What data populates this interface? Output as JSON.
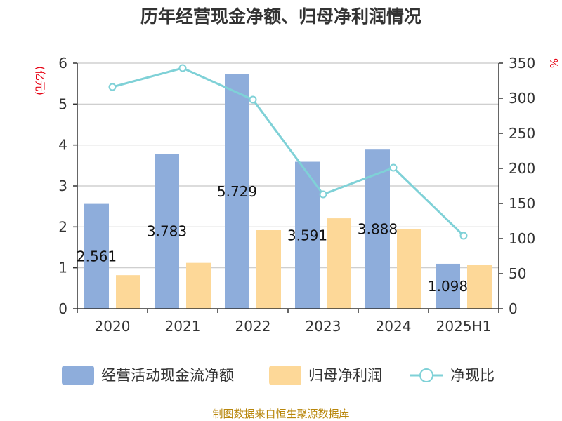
{
  "chart_data": {
    "type": "bar",
    "title": "历年经营现金净额、归母净利润情况",
    "y_left_unit": "(亿元)",
    "y_right_unit": "%",
    "categories": [
      "2020",
      "2021",
      "2022",
      "2023",
      "2024",
      "2025H1"
    ],
    "y_left_ticks": [
      "0",
      "1",
      "2",
      "3",
      "4",
      "5",
      "6"
    ],
    "y_right_ticks": [
      "0",
      "50",
      "100",
      "150",
      "200",
      "250",
      "300",
      "350"
    ],
    "ylim_left": [
      0,
      6
    ],
    "ylim_right": [
      0,
      350
    ],
    "grid": true,
    "legend_position": "bottom",
    "series": [
      {
        "name": "经营活动现金流净额",
        "kind": "bar",
        "axis": "left",
        "color": "#8eaddb",
        "values": [
          2.561,
          3.783,
          5.729,
          3.591,
          3.888,
          1.098
        ],
        "labels": [
          "2.561",
          "3.783",
          "5.729",
          "3.591",
          "3.888",
          "1.098"
        ]
      },
      {
        "name": "归母净利润",
        "kind": "bar",
        "axis": "left",
        "color": "#fdd898",
        "values": [
          0.82,
          1.12,
          1.92,
          2.21,
          1.94,
          1.07
        ]
      },
      {
        "name": "净现比",
        "kind": "line",
        "axis": "right",
        "color": "#7fd1d7",
        "values": [
          316,
          343,
          298,
          163,
          201,
          104
        ]
      }
    ],
    "source": "制图数据来自恒生聚源数据库"
  }
}
